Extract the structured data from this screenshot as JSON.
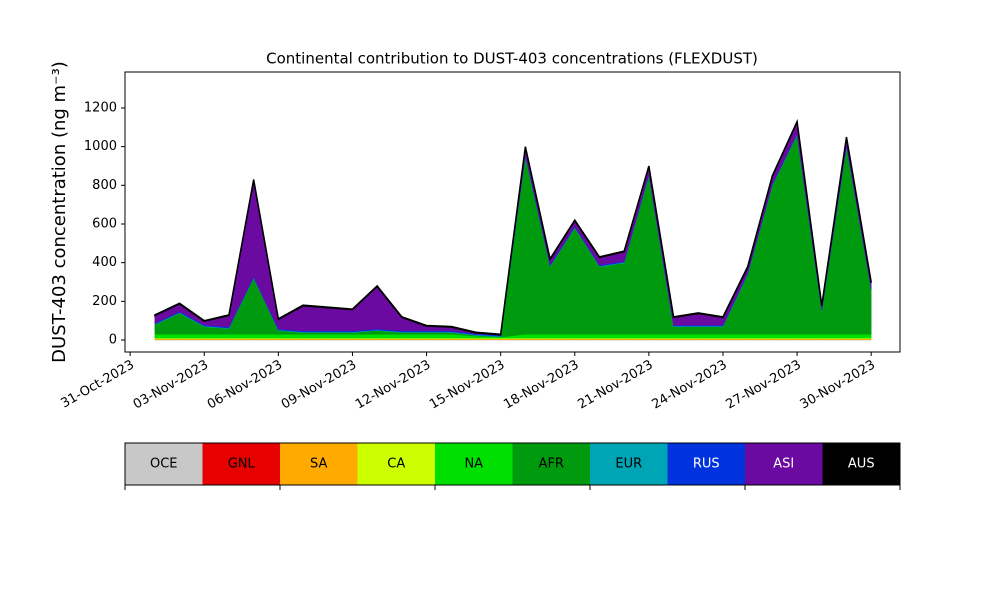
{
  "chart_data": {
    "type": "stacked-area",
    "title": "Continental contribution to DUST-403 concentrations (FLEXDUST)",
    "y_label": "DUST-403 concentration (ng m⁻³)",
    "x": [
      "2023-11-01",
      "2023-11-02",
      "2023-11-03",
      "2023-11-04",
      "2023-11-05",
      "2023-11-06",
      "2023-11-07",
      "2023-11-08",
      "2023-11-09",
      "2023-11-10",
      "2023-11-11",
      "2023-11-12",
      "2023-11-13",
      "2023-11-14",
      "2023-11-15",
      "2023-11-16",
      "2023-11-17",
      "2023-11-18",
      "2023-11-19",
      "2023-11-20",
      "2023-11-21",
      "2023-11-22",
      "2023-11-23",
      "2023-11-24",
      "2023-11-25",
      "2023-11-26",
      "2023-11-27",
      "2023-11-28",
      "2023-11-29",
      "2023-11-30"
    ],
    "xlim": [
      "2023-10-30T19:00:00Z",
      "2023-12-01T04:00:00Z"
    ],
    "xticks": [
      {
        "value": "2023-10-31",
        "label": "31-Oct-2023"
      },
      {
        "value": "2023-11-03",
        "label": "03-Nov-2023"
      },
      {
        "value": "2023-11-06",
        "label": "06-Nov-2023"
      },
      {
        "value": "2023-11-09",
        "label": "09-Nov-2023"
      },
      {
        "value": "2023-11-12",
        "label": "12-Nov-2023"
      },
      {
        "value": "2023-11-15",
        "label": "15-Nov-2023"
      },
      {
        "value": "2023-11-18",
        "label": "18-Nov-2023"
      },
      {
        "value": "2023-11-21",
        "label": "21-Nov-2023"
      },
      {
        "value": "2023-11-24",
        "label": "24-Nov-2023"
      },
      {
        "value": "2023-11-27",
        "label": "27-Nov-2023"
      },
      {
        "value": "2023-11-30",
        "label": "30-Nov-2023"
      }
    ],
    "ylim": [
      -62,
      1386
    ],
    "yticks": [
      0,
      200,
      400,
      600,
      800,
      1000,
      1200
    ],
    "series": [
      {
        "name": "OCE",
        "color": "#c8c8c8",
        "values": [
          1,
          1,
          1,
          1,
          1,
          1,
          1,
          1,
          1,
          1,
          1,
          1,
          1,
          1,
          1,
          1,
          1,
          1,
          1,
          1,
          1,
          1,
          1,
          1,
          1,
          1,
          1,
          1,
          1,
          1
        ]
      },
      {
        "name": "GNL",
        "color": "#e60000",
        "values": [
          1,
          1,
          1,
          1,
          1,
          1,
          1,
          1,
          1,
          1,
          1,
          1,
          1,
          1,
          1,
          1,
          1,
          1,
          1,
          1,
          1,
          1,
          1,
          1,
          1,
          1,
          1,
          1,
          1,
          1
        ]
      },
      {
        "name": "SA",
        "color": "#ffaa00",
        "values": [
          3,
          3,
          3,
          3,
          3,
          3,
          3,
          3,
          3,
          3,
          3,
          3,
          3,
          3,
          3,
          3,
          3,
          3,
          3,
          3,
          3,
          3,
          3,
          3,
          3,
          3,
          3,
          3,
          3,
          3
        ]
      },
      {
        "name": "CA",
        "color": "#ccff00",
        "values": [
          5,
          5,
          5,
          5,
          5,
          5,
          5,
          5,
          5,
          5,
          5,
          5,
          5,
          5,
          5,
          5,
          5,
          5,
          5,
          5,
          5,
          5,
          5,
          5,
          5,
          5,
          5,
          5,
          5,
          5
        ]
      },
      {
        "name": "NA",
        "color": "#00e000",
        "values": [
          20,
          20,
          20,
          20,
          20,
          20,
          20,
          20,
          20,
          20,
          20,
          20,
          20,
          10,
          5,
          20,
          20,
          20,
          20,
          20,
          20,
          20,
          20,
          20,
          20,
          20,
          20,
          20,
          20,
          20
        ]
      },
      {
        "name": "AFR",
        "color": "#009a0e",
        "values": [
          49,
          109,
          39,
          29,
          289,
          19,
          9,
          9,
          9,
          19,
          9,
          9,
          9,
          4,
          2,
          919,
          349,
          549,
          349,
          369,
          819,
          39,
          39,
          39,
          309,
          769,
          1029,
          119,
          969,
          229
        ]
      },
      {
        "name": "EUR",
        "color": "#00a5b5",
        "values": [
          3,
          3,
          3,
          3,
          3,
          3,
          3,
          3,
          3,
          3,
          3,
          3,
          3,
          3,
          3,
          3,
          3,
          3,
          3,
          3,
          3,
          3,
          3,
          3,
          3,
          3,
          3,
          3,
          3,
          3
        ]
      },
      {
        "name": "RUS",
        "color": "#0033dd",
        "values": [
          5,
          5,
          5,
          5,
          5,
          5,
          5,
          5,
          5,
          5,
          5,
          5,
          5,
          5,
          5,
          5,
          5,
          5,
          5,
          5,
          5,
          5,
          5,
          5,
          5,
          5,
          5,
          5,
          5,
          5
        ]
      },
      {
        "name": "ASI",
        "color": "#6a0aa0",
        "values": [
          40,
          40,
          20,
          60,
          500,
          50,
          130,
          120,
          110,
          220,
          70,
          25,
          20,
          5,
          2,
          40,
          30,
          30,
          40,
          50,
          40,
          40,
          60,
          40,
          30,
          40,
          60,
          20,
          40,
          30
        ]
      },
      {
        "name": "AUS",
        "color": "#000000",
        "values": [
          3,
          3,
          3,
          3,
          3,
          3,
          3,
          3,
          3,
          3,
          3,
          3,
          3,
          3,
          3,
          3,
          3,
          3,
          3,
          3,
          3,
          3,
          3,
          3,
          3,
          3,
          3,
          3,
          3,
          3
        ]
      }
    ]
  }
}
